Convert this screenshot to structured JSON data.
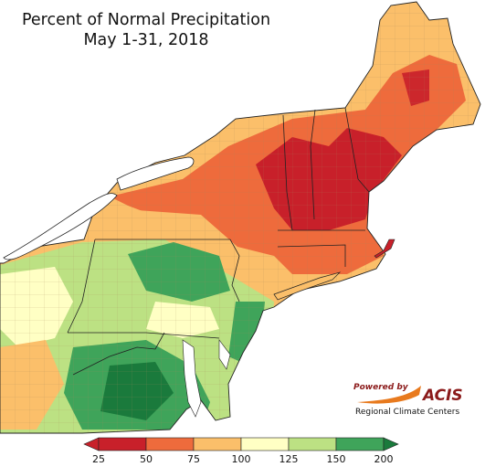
{
  "title": "Percent of Normal Precipitation",
  "subtitle": "May 1-31, 2018",
  "legend": {
    "ticks": [
      "25",
      "50",
      "75",
      "100",
      "125",
      "150",
      "200"
    ],
    "colors": [
      "#c8202a",
      "#ee6b3c",
      "#fbbf6a",
      "#ffffc4",
      "#bce183",
      "#3fa45a",
      "#1a7a3c"
    ]
  },
  "logo": {
    "powered_by": "Powered by",
    "name": "ACIS",
    "subtitle": "Regional Climate Centers"
  },
  "palette": {
    "water": "#ffffff",
    "border": "#222222",
    "county": "#b08d63",
    "very_dry": "#c8202a",
    "dry": "#ee6b3c",
    "below": "#fbbf6a",
    "normal": "#ffffc4",
    "above": "#bce183",
    "wet": "#3fa45a",
    "very_wet": "#1a7a3c"
  }
}
